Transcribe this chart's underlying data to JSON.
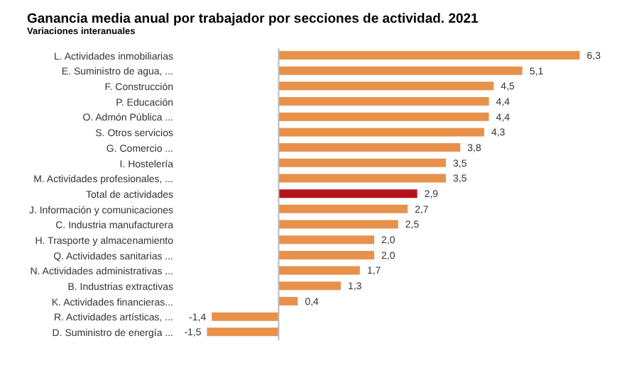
{
  "chart_data": {
    "type": "bar",
    "orientation": "horizontal",
    "title": "Ganancia media anual por trabajador por secciones de actividad. 2021",
    "subtitle": "Variaciones interanuales",
    "categories": [
      "L. Actividades inmobiliarias",
      "E. Suministro de agua, ...",
      "F. Construcción",
      "P. Educación",
      "O. Admón Pública ...",
      "S. Otros servicios",
      "G. Comercio ...",
      "I. Hostelería",
      "M. Actividades profesionales, ...",
      "Total de actividades",
      "J. Información y comunicaciones",
      "C. Industria manufacturera",
      "H. Trasporte y almacenamiento",
      "Q. Actividades sanitarias ...",
      "N. Actividades administrativas ...",
      "B. Industrias extractivas",
      "K. Actividades financieras...",
      "R. Actividades artísticas, ...",
      "D. Suministro de energía ..."
    ],
    "values": [
      6.3,
      5.1,
      4.5,
      4.4,
      4.4,
      4.3,
      3.8,
      3.5,
      3.5,
      2.9,
      2.7,
      2.5,
      2.0,
      2.0,
      1.7,
      1.3,
      0.4,
      -1.4,
      -1.5
    ],
    "value_labels": [
      "6,3",
      "5,1",
      "4,5",
      "4,4",
      "4,4",
      "4,3",
      "3,8",
      "3,5",
      "3,5",
      "2,9",
      "2,7",
      "2,5",
      "2,0",
      "2,0",
      "1,7",
      "1,3",
      "0,4",
      "-1,4",
      "-1,5"
    ],
    "colors": [
      "#e8914b",
      "#e8914b",
      "#e8914b",
      "#e8914b",
      "#e8914b",
      "#e8914b",
      "#e8914b",
      "#e8914b",
      "#e8914b",
      "#b5121b",
      "#e8914b",
      "#e8914b",
      "#e8914b",
      "#e8914b",
      "#e8914b",
      "#e8914b",
      "#e8914b",
      "#e8914b",
      "#e8914b"
    ],
    "grid": false
  }
}
